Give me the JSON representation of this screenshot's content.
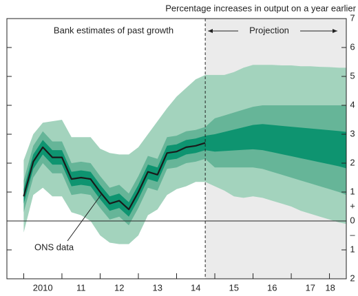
{
  "chart_data": {
    "type": "fan",
    "title": "Percentage increases in output on a year earlier",
    "annotations": {
      "past": "Bank estimates of past growth",
      "projection": "Projection"
    },
    "plus_sign": "+",
    "minus_sign": "–",
    "x": [
      2010.0,
      2010.25,
      2010.5,
      2010.75,
      2011.0,
      2011.25,
      2011.5,
      2011.75,
      2012.0,
      2012.25,
      2012.5,
      2012.75,
      2013.0,
      2013.25,
      2013.5,
      2013.75,
      2014.0,
      2014.25,
      2014.5,
      2014.75,
      2015.0,
      2015.25,
      2015.5,
      2015.75,
      2016.0,
      2016.25,
      2016.5,
      2016.75,
      2017.0,
      2017.25,
      2017.5,
      2017.75,
      2018.0,
      2018.25,
      2018.44
    ],
    "xlim": [
      2009.56,
      2018.44
    ],
    "xticks": [
      {
        "value": 2010.5,
        "label": "2010"
      },
      {
        "value": 2011.5,
        "label": "11"
      },
      {
        "value": 2012.5,
        "label": "12"
      },
      {
        "value": 2013.5,
        "label": "13"
      },
      {
        "value": 2014.5,
        "label": "14"
      },
      {
        "value": 2015.5,
        "label": "15"
      },
      {
        "value": 2016.5,
        "label": "16"
      },
      {
        "value": 2017.5,
        "label": "17"
      },
      {
        "value": 2018.02,
        "label": "18"
      }
    ],
    "x_minor_ticks": [
      2010,
      2011,
      2012,
      2013,
      2014,
      2015,
      2016,
      2017,
      2018
    ],
    "ylim": [
      -2,
      7
    ],
    "yticks": [
      7,
      6,
      5,
      4,
      3,
      2,
      1,
      0,
      {
        "value": -1,
        "label": "1"
      },
      {
        "value": -2,
        "label": "2"
      }
    ],
    "projection_start": 2014.75,
    "projection_color": "#ebebeb",
    "bands": [
      {
        "color": "#a3d3bd",
        "upper": [
          2.1,
          3.0,
          3.4,
          3.45,
          3.5,
          2.9,
          2.9,
          2.9,
          2.5,
          2.35,
          2.3,
          2.3,
          2.55,
          3.0,
          3.45,
          3.9,
          4.3,
          4.6,
          4.9,
          5.05,
          5.05,
          5.05,
          5.15,
          5.3,
          5.4,
          5.4,
          5.4,
          5.38,
          5.38,
          5.35,
          5.35,
          5.33,
          5.32,
          5.3,
          5.3
        ],
        "lower": [
          -0.4,
          0.9,
          1.15,
          0.85,
          0.85,
          0.3,
          0.2,
          0.0,
          -0.5,
          -0.75,
          -0.8,
          -0.8,
          -0.5,
          0.2,
          0.4,
          0.9,
          1.1,
          1.2,
          1.35,
          1.35,
          1.2,
          1.05,
          0.85,
          0.8,
          0.85,
          0.8,
          0.7,
          0.6,
          0.5,
          0.35,
          0.25,
          0.15,
          0.05,
          -0.05,
          -0.1
        ]
      },
      {
        "color": "#66b598",
        "upper": [
          1.4,
          2.6,
          3.1,
          2.75,
          2.75,
          2.0,
          2.05,
          2.0,
          1.55,
          1.15,
          1.25,
          0.95,
          1.55,
          2.25,
          2.15,
          2.9,
          2.95,
          3.1,
          3.15,
          3.25,
          3.55,
          3.65,
          3.75,
          3.85,
          3.95,
          4.0,
          4.0,
          4.0,
          4.0,
          4.0,
          4.0,
          4.0,
          4.0,
          4.0,
          4.0
        ],
        "lower": [
          0.3,
          1.5,
          2.0,
          1.65,
          1.65,
          0.9,
          0.95,
          0.9,
          0.45,
          0.05,
          0.15,
          -0.15,
          0.45,
          1.15,
          1.05,
          1.8,
          1.85,
          2.0,
          2.05,
          2.15,
          1.85,
          1.85,
          1.85,
          1.85,
          1.85,
          1.8,
          1.7,
          1.6,
          1.5,
          1.4,
          1.3,
          1.2,
          1.1,
          1.0,
          0.9
        ]
      },
      {
        "color": "#0e9470",
        "upper": [
          1.1,
          2.3,
          2.8,
          2.45,
          2.45,
          1.7,
          1.75,
          1.7,
          1.25,
          0.85,
          0.95,
          0.65,
          1.25,
          1.95,
          1.85,
          2.6,
          2.65,
          2.8,
          2.85,
          2.95,
          3.0,
          3.08,
          3.16,
          3.24,
          3.32,
          3.35,
          3.32,
          3.29,
          3.26,
          3.23,
          3.2,
          3.17,
          3.14,
          3.11,
          3.08
        ],
        "lower": [
          0.6,
          1.8,
          2.3,
          1.95,
          1.95,
          1.2,
          1.25,
          1.2,
          0.75,
          0.35,
          0.45,
          0.15,
          0.75,
          1.45,
          1.35,
          2.1,
          2.15,
          2.3,
          2.35,
          2.45,
          2.4,
          2.42,
          2.44,
          2.46,
          2.48,
          2.45,
          2.38,
          2.31,
          2.24,
          2.17,
          2.1,
          2.03,
          1.96,
          1.89,
          1.82
        ]
      }
    ],
    "series": [
      {
        "name": "ONS data",
        "color": "#1a1a1a",
        "values": [
          0.85,
          2.05,
          2.55,
          2.2,
          2.2,
          1.45,
          1.5,
          1.45,
          1.0,
          0.6,
          0.7,
          0.4,
          1.0,
          1.7,
          1.6,
          2.35,
          2.4,
          2.55,
          2.6,
          2.7,
          null,
          null,
          null,
          null,
          null,
          null,
          null,
          null,
          null,
          null,
          null,
          null,
          null,
          null,
          null
        ]
      }
    ]
  }
}
